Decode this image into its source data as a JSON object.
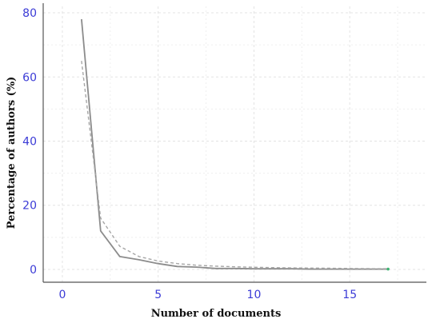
{
  "chart_data": {
    "type": "line",
    "title": "",
    "xlabel": "Number of documents",
    "ylabel": "Percentage of authors (%)",
    "xlim": [
      -1,
      19
    ],
    "ylim": [
      -4,
      82
    ],
    "xticks": [
      0,
      5,
      10,
      15
    ],
    "yticks": [
      0,
      20,
      40,
      60,
      80
    ],
    "grid": true,
    "legend": "none",
    "series": [
      {
        "style": "solid",
        "color": "#8c8c8c",
        "x": [
          1,
          2,
          3,
          4,
          5,
          6,
          7,
          8,
          9,
          10,
          11,
          12,
          13,
          14,
          15,
          16,
          17
        ],
        "y": [
          78,
          12,
          4,
          3,
          1.8,
          0.9,
          0.7,
          0.3,
          0.3,
          0.2,
          0.2,
          0.2,
          0.1,
          0.1,
          0.1,
          0.1,
          0.1
        ]
      },
      {
        "style": "dashed",
        "color": "#a6a6a6",
        "x": [
          1,
          2,
          3,
          4,
          5,
          6,
          7,
          8,
          9,
          10,
          11,
          12,
          13,
          14,
          15,
          16,
          17
        ],
        "y": [
          65,
          16,
          7.2,
          4,
          2.6,
          1.8,
          1.3,
          1.0,
          0.8,
          0.65,
          0.55,
          0.45,
          0.4,
          0.35,
          0.3,
          0.25,
          0.22
        ]
      }
    ],
    "end_marker_color": "#3cb371"
  }
}
